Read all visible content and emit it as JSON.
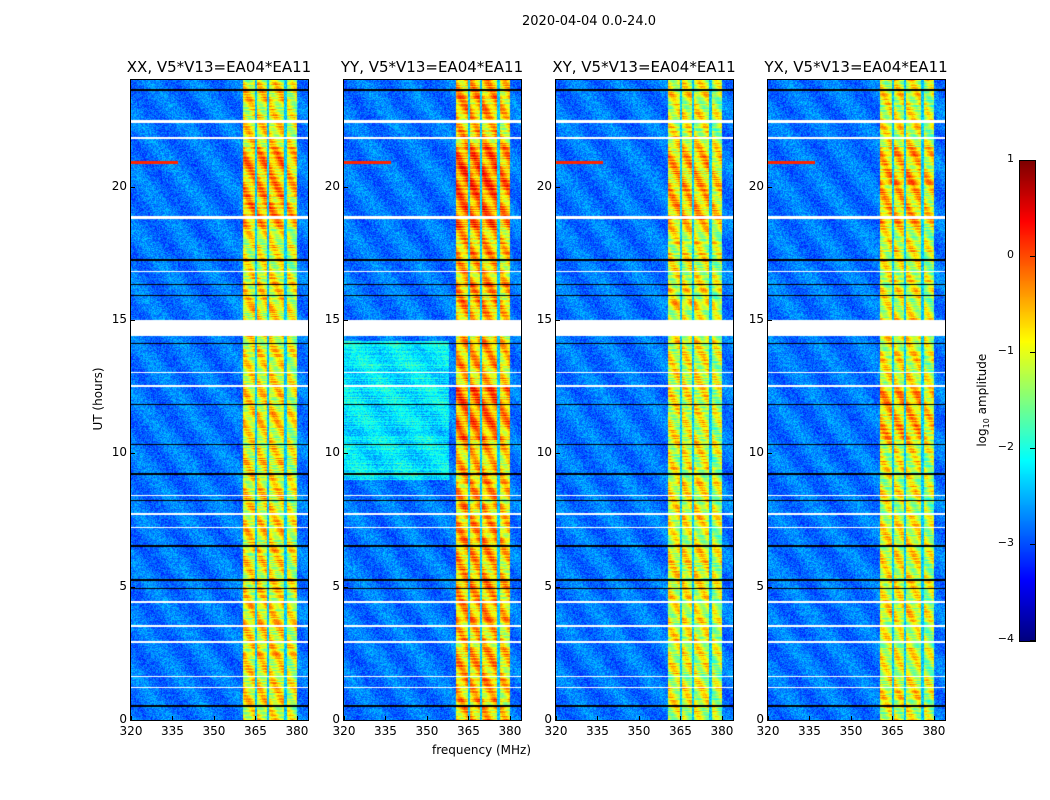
{
  "chart_data": {
    "type": "heatmap",
    "title": "2020-04-04 0.0-24.0",
    "xlabel": "frequency (MHz)",
    "ylabel": "UT (hours)",
    "xlim": [
      320,
      384
    ],
    "ylim": [
      0,
      24
    ],
    "xticks": [
      "320",
      "335",
      "350",
      "365",
      "380"
    ],
    "xtick_values": [
      320,
      335,
      350,
      365,
      380
    ],
    "yticks": [
      "0",
      "5",
      "10",
      "15",
      "20"
    ],
    "ytick_values": [
      0,
      5,
      10,
      15,
      20
    ],
    "panels": [
      {
        "title": "XX, V5*V13=EA04*EA11",
        "band_level": -0.9
      },
      {
        "title": "YY, V5*V13=EA04*EA11",
        "band_level": -0.6
      },
      {
        "title": "XY, V5*V13=EA04*EA11",
        "band_level": -1.0
      },
      {
        "title": "YX, V5*V13=EA04*EA11",
        "band_level": -1.0
      }
    ],
    "rfi_band_mhz": [
      360.5,
      380
    ],
    "band_gaps_mhz": [
      365.2,
      369.6,
      375.8
    ],
    "background_level": -2.8,
    "flagged_white_ut": [
      [
        14.4,
        15.0
      ],
      [
        18.8,
        18.9
      ],
      [
        22.4,
        22.5
      ],
      [
        21.8,
        21.85
      ],
      [
        16.8,
        16.85
      ],
      [
        13.0,
        13.05
      ],
      [
        12.5,
        12.55
      ],
      [
        8.4,
        8.45
      ],
      [
        7.7,
        7.75
      ],
      [
        7.2,
        7.25
      ],
      [
        4.4,
        4.45
      ],
      [
        3.5,
        3.55
      ],
      [
        2.9,
        2.95
      ],
      [
        1.6,
        1.65
      ],
      [
        1.2,
        1.25
      ]
    ],
    "flagged_black_ut": [
      [
        23.6,
        23.65
      ],
      [
        17.2,
        17.3
      ],
      [
        16.3,
        16.35
      ],
      [
        15.9,
        15.95
      ],
      [
        14.1,
        14.15
      ],
      [
        11.8,
        11.85
      ],
      [
        10.3,
        10.35
      ],
      [
        9.2,
        9.25
      ],
      [
        8.2,
        8.25
      ],
      [
        6.5,
        6.55
      ],
      [
        5.2,
        5.3
      ],
      [
        4.9,
        4.95
      ],
      [
        0.5,
        0.55
      ]
    ],
    "colorbar": {
      "label_main": "log",
      "label_sub": "10",
      "label_rest": " amplitude",
      "range": [
        -4,
        1
      ],
      "ticks": [
        "−4",
        "−3",
        "−2",
        "−1",
        "0",
        "1"
      ],
      "tick_values": [
        -4,
        -3,
        -2,
        -1,
        0,
        1
      ],
      "colormap": "jet"
    }
  }
}
